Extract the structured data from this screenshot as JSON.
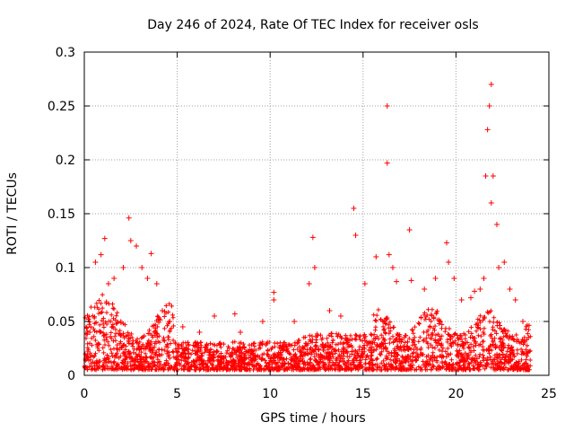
{
  "chart_data": {
    "type": "scatter",
    "title": "Day 246 of 2024, Rate Of TEC Index for receiver osls",
    "xlabel": "GPS time / hours",
    "ylabel": "ROTI / TECUs",
    "xlim": [
      0,
      25
    ],
    "ylim": [
      0,
      0.3
    ],
    "xticks": [
      0,
      5,
      10,
      15,
      20,
      25
    ],
    "yticks": [
      0,
      0.05,
      0.1,
      0.15,
      0.2,
      0.25,
      0.3
    ],
    "xtick_labels": [
      "0",
      "5",
      "10",
      "15",
      "20",
      "25"
    ],
    "ytick_labels": [
      "0",
      "0.05",
      "0.1",
      "0.15",
      "0.2",
      "0.25",
      "0.3"
    ],
    "grid": true,
    "marker": "plus",
    "series": [
      {
        "name": "osls",
        "color": "#ff0000",
        "x": [
          0.3,
          0.6,
          0.9,
          1.1,
          1.3,
          1.6,
          2.1,
          2.4,
          2.5,
          2.8,
          3.1,
          3.4,
          3.6,
          3.9,
          4.2,
          4.6,
          5.3,
          6.2,
          7.0,
          8.1,
          8.4,
          9.6,
          10.2,
          10.2,
          11.3,
          12.1,
          12.3,
          12.4,
          13.2,
          13.8,
          14.5,
          14.6,
          15.1,
          15.7,
          16.3,
          16.3,
          16.4,
          16.6,
          16.8,
          17.5,
          17.6,
          18.3,
          18.9,
          19.5,
          19.6,
          19.9,
          20.3,
          20.8,
          21.0,
          21.3,
          21.5,
          21.6,
          21.7,
          21.8,
          21.9,
          21.9,
          22.0,
          22.2,
          22.3,
          22.6,
          22.9,
          23.2,
          23.6,
          23.9
        ],
        "y": [
          0.04,
          0.105,
          0.112,
          0.127,
          0.085,
          0.09,
          0.1,
          0.146,
          0.125,
          0.12,
          0.1,
          0.09,
          0.113,
          0.085,
          0.06,
          0.05,
          0.045,
          0.04,
          0.055,
          0.057,
          0.04,
          0.05,
          0.077,
          0.07,
          0.05,
          0.085,
          0.128,
          0.1,
          0.06,
          0.055,
          0.155,
          0.13,
          0.085,
          0.11,
          0.25,
          0.197,
          0.112,
          0.1,
          0.087,
          0.135,
          0.088,
          0.08,
          0.09,
          0.123,
          0.105,
          0.09,
          0.07,
          0.072,
          0.078,
          0.08,
          0.09,
          0.185,
          0.228,
          0.25,
          0.27,
          0.16,
          0.185,
          0.14,
          0.1,
          0.105,
          0.08,
          0.07,
          0.05,
          0.035
        ]
      }
    ]
  }
}
